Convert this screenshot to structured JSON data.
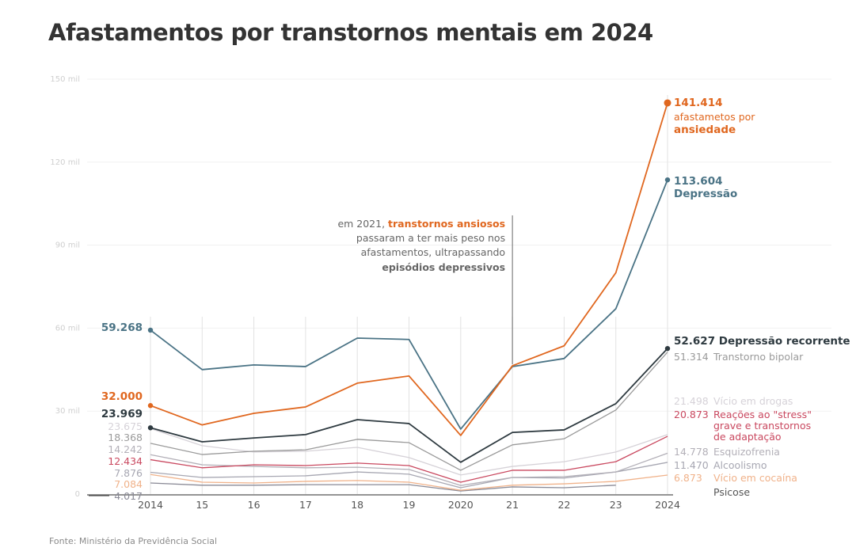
{
  "title": "Afastamentos por transtornos mentais em 2024",
  "source": "Fonte: Ministério da Previdência Social",
  "annotation": {
    "line1_prefix": "em 2021, ",
    "line1_bold": "transtornos ansiosos",
    "line2": "passaram a ter mais peso nos",
    "line3": "afastamentos, ultrapassando",
    "line4_bold": "episódios depressivos",
    "year": "2021"
  },
  "chart_data": {
    "type": "line",
    "title": "Afastamentos por transtornos mentais em 2024",
    "xlabel": "",
    "ylabel": "",
    "x": [
      "2014",
      "2015",
      "2016",
      "2017",
      "2018",
      "2019",
      "2020",
      "2021",
      "2022",
      "2023",
      "2024"
    ],
    "x_tick_labels": [
      "2014",
      "15",
      "16",
      "17",
      "18",
      "19",
      "2020",
      "21",
      "22",
      "23",
      "2024"
    ],
    "ylim": [
      0,
      150000
    ],
    "y_ticks": [
      0,
      30000,
      60000,
      90000,
      120000,
      150000
    ],
    "y_tick_labels": [
      "0",
      "30 mil",
      "60 mil",
      "90 mil",
      "120 mil",
      "150 mil"
    ],
    "grid": true,
    "series": [
      {
        "key": "ansiedade",
        "name": "afastametos por ansiedade",
        "color": "#e0671f",
        "start_label": "32.000",
        "end_label": "141.414",
        "end_text_1": "afastametos por",
        "end_text_2": "ansiedade",
        "values": [
          32000,
          25000,
          29200,
          31500,
          40100,
          42700,
          21200,
          46400,
          53600,
          80000,
          141414
        ]
      },
      {
        "key": "depressao",
        "name": "Depressão",
        "color": "#4a7385",
        "start_label": "59.268",
        "end_label": "113.604",
        "end_text_1": "Depressão",
        "values": [
          59268,
          45000,
          46700,
          46100,
          56400,
          55900,
          23500,
          46100,
          49000,
          67000,
          113604
        ]
      },
      {
        "key": "depressao_recorrente",
        "name": "Depressão recorrente",
        "color": "#2e3a40",
        "start_label": "23.969",
        "end_label": "52.627",
        "values": [
          23969,
          18900,
          20300,
          21500,
          26900,
          25500,
          11500,
          22300,
          23200,
          32700,
          52627
        ]
      },
      {
        "key": "bipolar",
        "name": "Transtorno bipolar",
        "color": "#9a9a9a",
        "start_label": "18.368",
        "end_label": "51.314",
        "values": [
          18368,
          14300,
          15500,
          16000,
          19800,
          18600,
          8600,
          17800,
          20000,
          30400,
          51314
        ]
      },
      {
        "key": "drogas",
        "name": "Vício em drogas",
        "color": "#d6d2d8",
        "start_label": "23.675",
        "end_label": "21.498",
        "values": [
          23675,
          17500,
          15200,
          15500,
          16900,
          13200,
          6900,
          10000,
          11700,
          15200,
          21498
        ]
      },
      {
        "key": "stress",
        "name": "Reações ao \"stress\" grave e transtornos de adaptação",
        "color": "#c9485f",
        "start_label": "12.434",
        "end_label": "20.873",
        "end_text_1": "Reações ao \"stress\"",
        "end_text_2": "grave e transtornos",
        "end_text_3": "de adaptação",
        "values": [
          12434,
          9500,
          10600,
          10300,
          11200,
          10300,
          4300,
          8600,
          8600,
          11700,
          20873
        ]
      },
      {
        "key": "esquizofrenia",
        "name": "Esquizofrenia",
        "color": "#b3b0b8",
        "start_label": "14.242",
        "end_label": "14.778",
        "values": [
          14242,
          10600,
          10000,
          9500,
          9700,
          8900,
          3100,
          6000,
          6300,
          8000,
          14778
        ]
      },
      {
        "key": "alcoolismo",
        "name": "Alcoolismo",
        "color": "#a7a7b2",
        "start_label": "7.876",
        "end_label": "11.470",
        "values": [
          7876,
          6000,
          6300,
          6600,
          8000,
          7200,
          2300,
          6000,
          5800,
          8000,
          11470
        ]
      },
      {
        "key": "cocaina",
        "name": "Vício em cocaína",
        "color": "#f0b28a",
        "start_label": "7.084",
        "end_label": "6.873",
        "values": [
          7084,
          4300,
          4000,
          4600,
          4900,
          4300,
          1400,
          3200,
          3700,
          4600,
          6873
        ]
      },
      {
        "key": "psicose",
        "name": "Psicose",
        "color": "#8a8a96",
        "start_label": "4.017",
        "end_label": "",
        "values": [
          4017,
          3200,
          3200,
          3400,
          3400,
          3400,
          1100,
          2600,
          2300,
          3200,
          null
        ]
      }
    ]
  }
}
